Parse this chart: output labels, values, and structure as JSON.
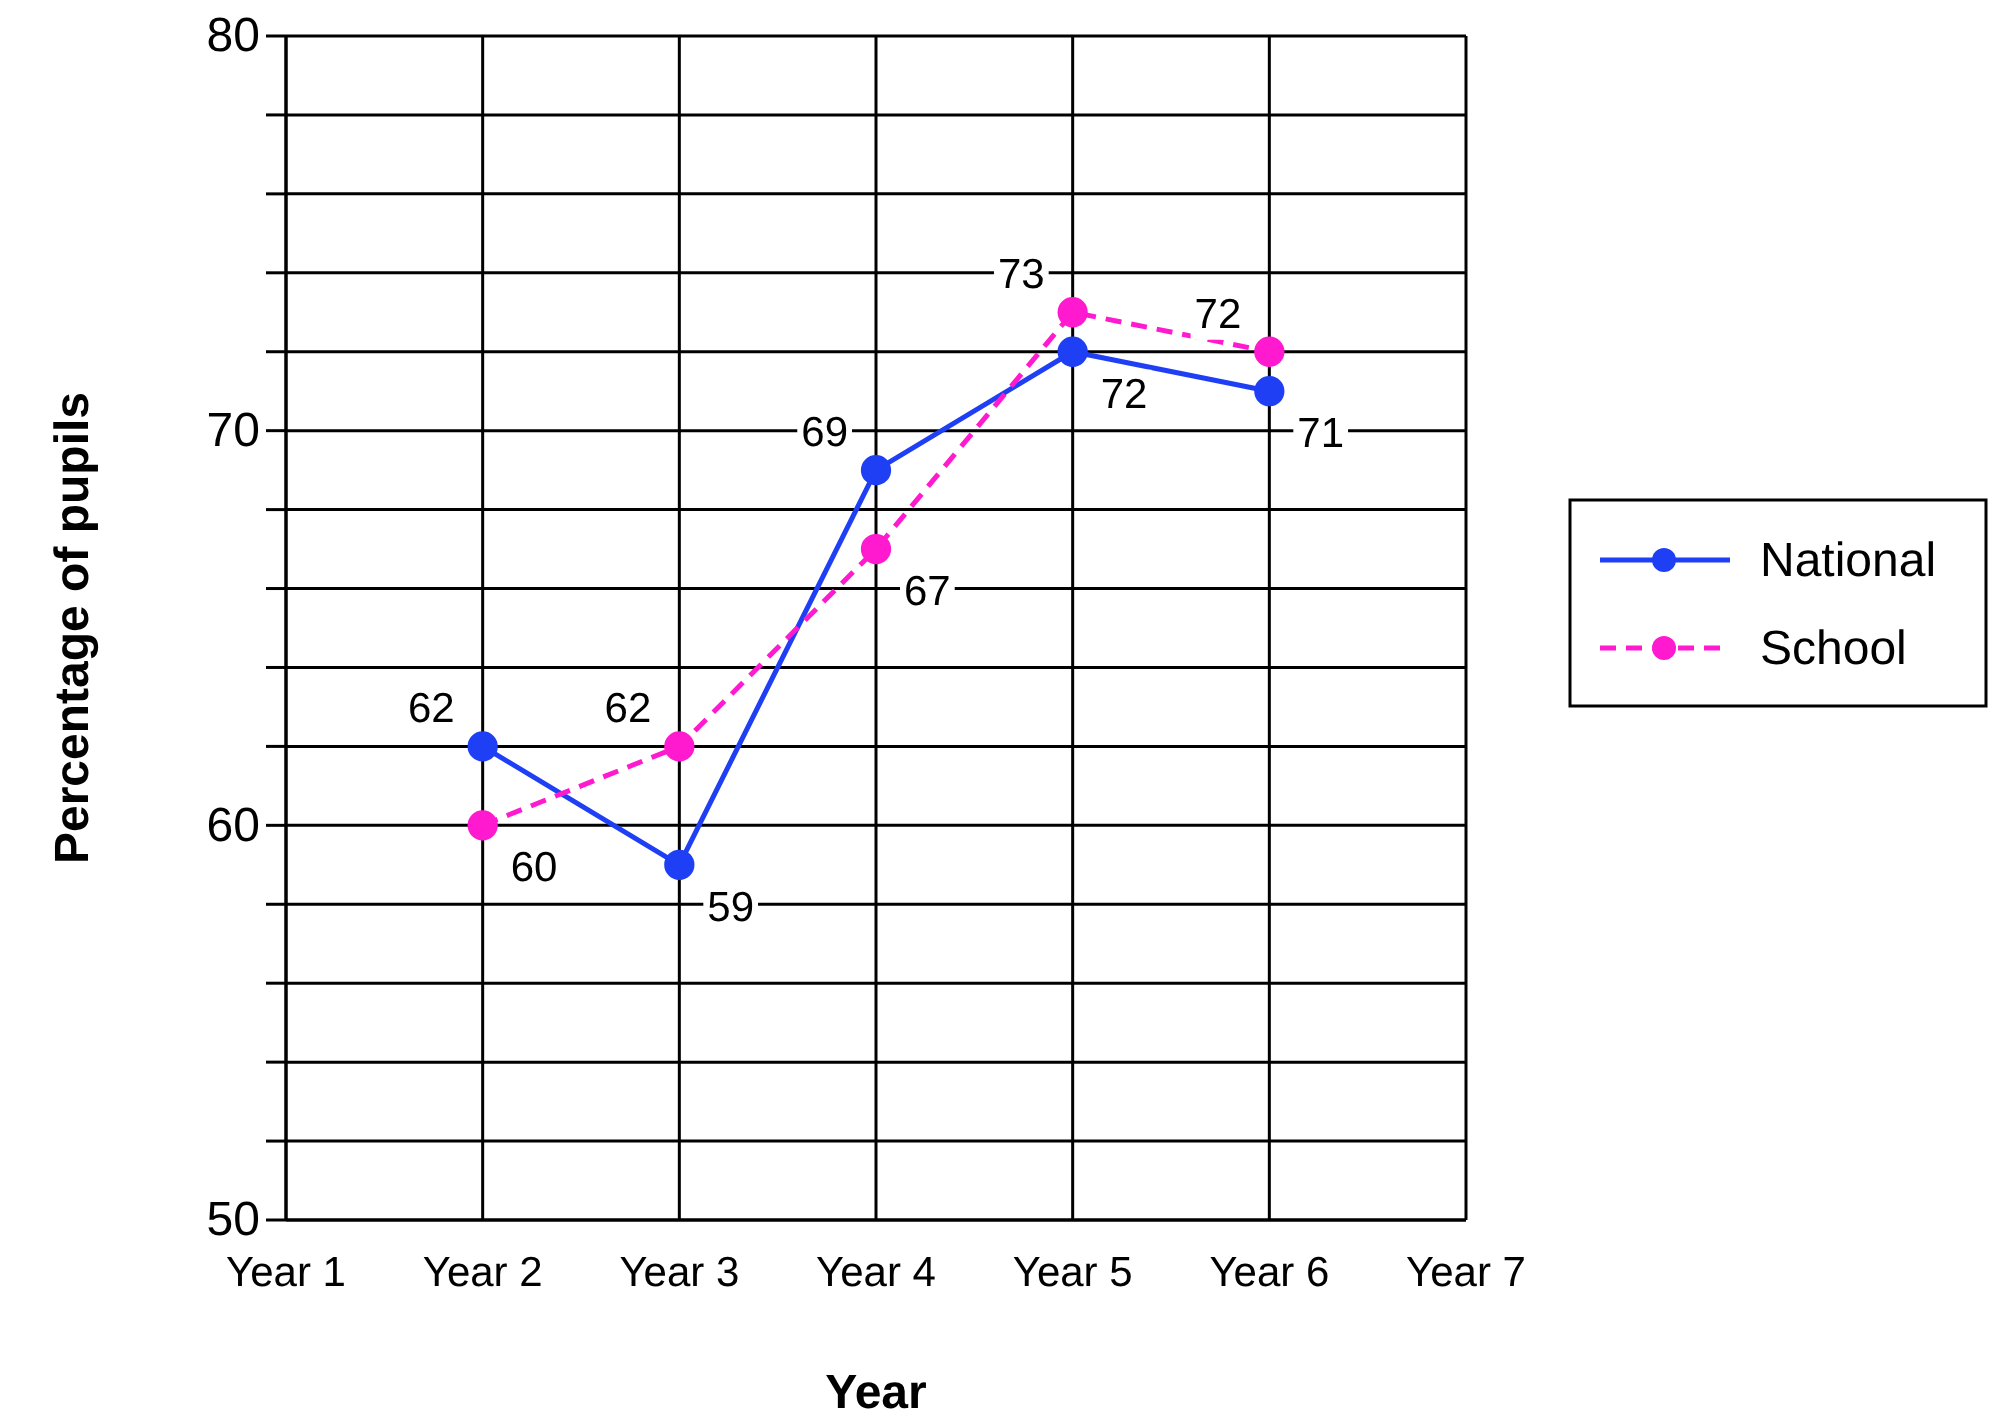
{
  "chart_data": {
    "type": "line",
    "xlabel": "Year",
    "ylabel": "Percentage of pupils",
    "categories": [
      "Year 1",
      "Year 2",
      "Year 3",
      "Year 4",
      "Year 5",
      "Year 6",
      "Year 7"
    ],
    "series": [
      {
        "name": "National",
        "color": "#1f3ff5",
        "line_style": "solid",
        "values": [
          null,
          62,
          59,
          69,
          72,
          71,
          null
        ]
      },
      {
        "name": "School",
        "color": "#ff1ad0",
        "line_style": "dashed",
        "values": [
          null,
          60,
          62,
          67,
          73,
          72,
          null
        ]
      }
    ],
    "ylim": [
      50,
      80
    ],
    "yticks": [
      50,
      {
        "value": 52,
        "label": null
      },
      {
        "value": 54,
        "label": null
      },
      {
        "value": 56,
        "label": null
      },
      {
        "value": 58,
        "label": null
      },
      60,
      {
        "value": 62,
        "label": null
      },
      {
        "value": 64,
        "label": null
      },
      {
        "value": 66,
        "label": null
      },
      {
        "value": 68,
        "label": null
      },
      70,
      {
        "value": 72,
        "label": null
      },
      {
        "value": 74,
        "label": null
      },
      {
        "value": 76,
        "label": null
      },
      {
        "value": 78,
        "label": null
      },
      80
    ],
    "grid": true,
    "marker": "circle",
    "data_labels": true,
    "legend": "right"
  }
}
